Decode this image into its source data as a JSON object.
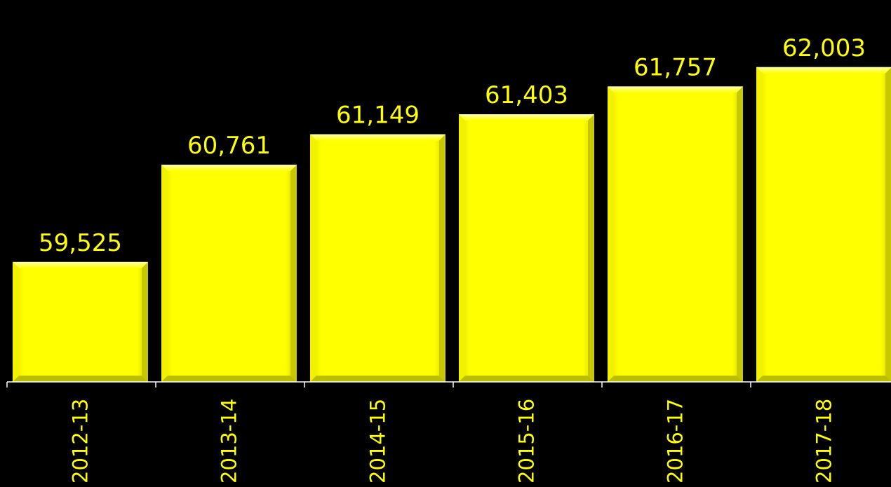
{
  "chart_data": {
    "type": "bar",
    "categories": [
      "2012-13",
      "2013-14",
      "2014-15",
      "2015-16",
      "2016-17",
      "2017-18"
    ],
    "values": [
      59525,
      60761,
      61149,
      61403,
      61757,
      62003
    ],
    "value_labels": [
      "59,525",
      "60,761",
      "61,149",
      "61,403",
      "61,757",
      "62,003"
    ],
    "title": "",
    "xlabel": "",
    "ylabel": "",
    "ylim": [
      58000,
      62500
    ],
    "grid": false,
    "legend": "none",
    "bar_color": "#FFFF00",
    "label_color": "#FFFF00",
    "background_color": "#000000",
    "axis_color": "#FFFFFF"
  }
}
